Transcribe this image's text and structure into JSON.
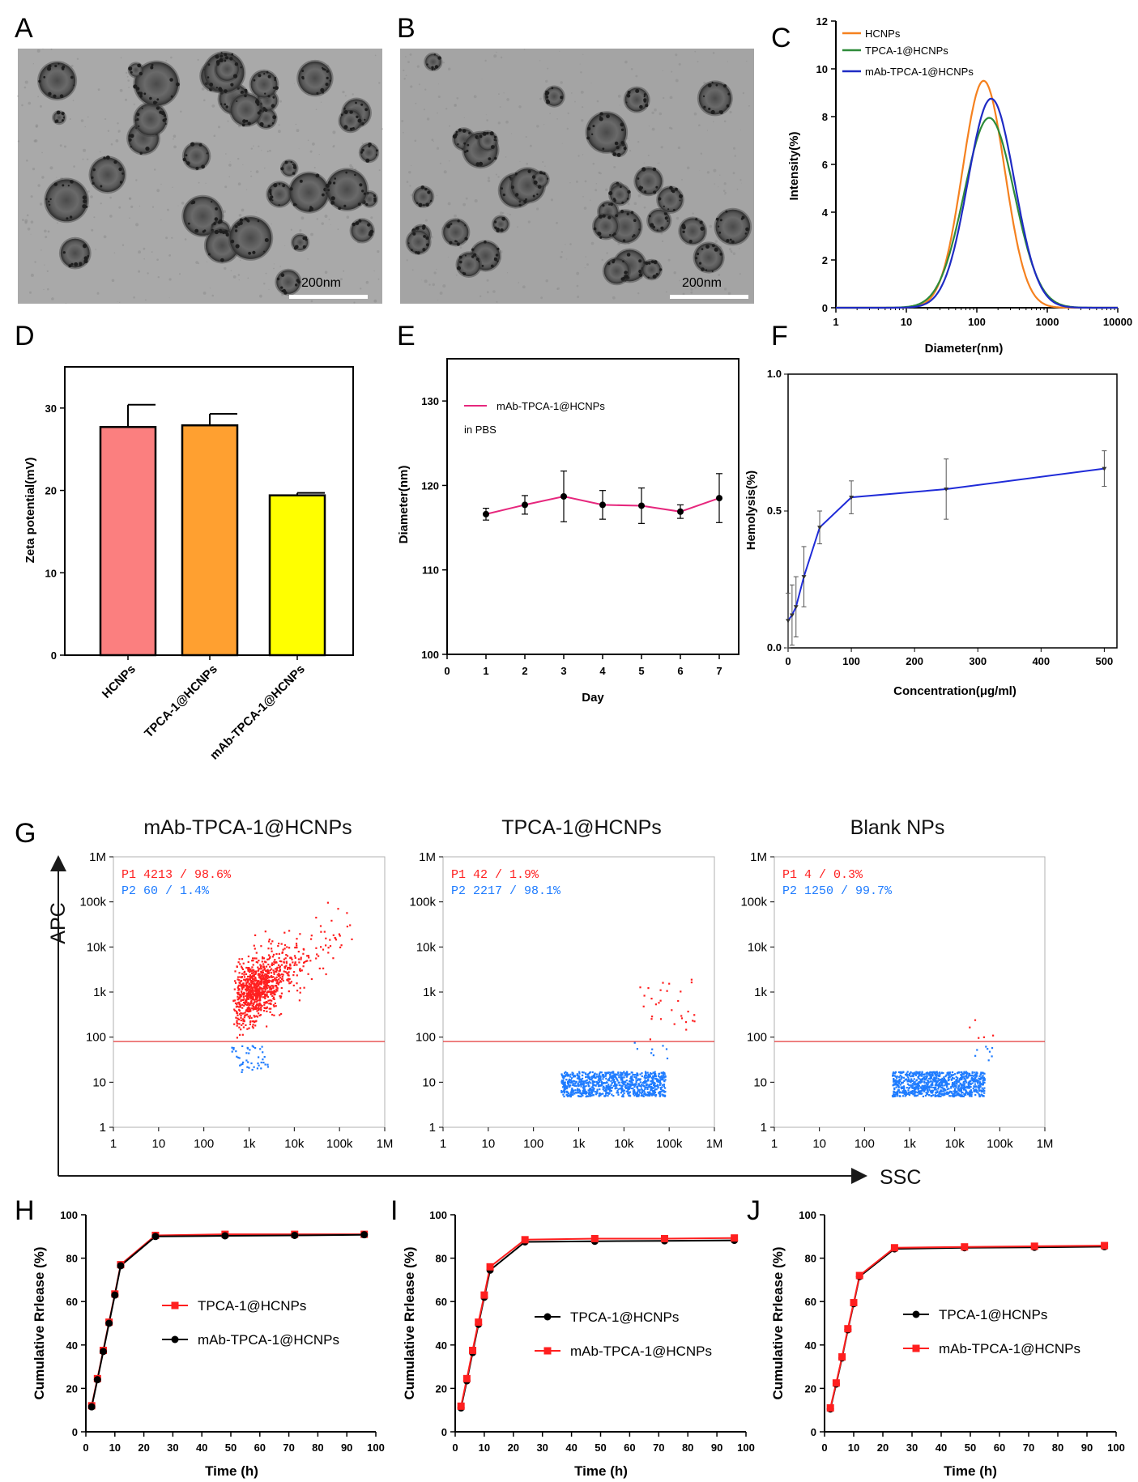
{
  "panels": {
    "A": "A",
    "B": "B",
    "C": "C",
    "D": "D",
    "E": "E",
    "F": "F",
    "G": "G",
    "H": "H",
    "I": "I",
    "J": "J"
  },
  "tem": [
    {
      "scale_label": "200nm"
    },
    {
      "scale_label": "200nm"
    }
  ],
  "colors": {
    "orange": "#f5811f",
    "green": "#2e8b3a",
    "blue": "#1f2bc4",
    "pink": "#e6277d",
    "red": "#ff1f1f",
    "popblue": "#1f7cff",
    "black": "#000000"
  },
  "chart_data": [
    {
      "id": "C",
      "type": "line",
      "xscale": "log",
      "xlabel": "Diameter(nm)",
      "ylabel": "Intensity(%)",
      "xlim": [
        1,
        10000
      ],
      "ylim": [
        0,
        12
      ],
      "xticks": [
        "1",
        "10",
        "100",
        "1000",
        "10000"
      ],
      "yticks": [
        "0",
        "2",
        "4",
        "6",
        "8",
        "10",
        "12"
      ],
      "series": [
        {
          "name": "HCNPs",
          "color": "#f5811f",
          "peak_x": 125,
          "peak_y": 9.5,
          "sigma": 0.3
        },
        {
          "name": "TPCA-1@HCNPs",
          "color": "#2e8b3a",
          "peak_x": 150,
          "peak_y": 7.95,
          "sigma": 0.355
        },
        {
          "name": "mAb-TPCA-1@HCNPs",
          "color": "#1f2bc4",
          "peak_x": 160,
          "peak_y": 8.75,
          "sigma": 0.33
        }
      ]
    },
    {
      "id": "D",
      "type": "bar",
      "ylabel": "Zeta potential(mV)",
      "ylim": [
        0,
        35
      ],
      "yticks": [
        "0",
        "10",
        "20",
        "30"
      ],
      "categories": [
        "HCNPs",
        "TPCA-1@HCNPs",
        "mAb-TPCA-1@HCNPs"
      ],
      "values": [
        27.7,
        27.9,
        19.4
      ],
      "errors": [
        2.7,
        1.4,
        0.3
      ],
      "bar_colors": [
        "#fb7f7f",
        "#ffa030",
        "#ffff00"
      ]
    },
    {
      "id": "E",
      "type": "line",
      "xlabel": "Day",
      "ylabel": "Diameter(nm)",
      "xlim": [
        0,
        7.5
      ],
      "ylim": [
        100,
        135
      ],
      "xticks": [
        "0",
        "1",
        "2",
        "3",
        "4",
        "5",
        "6",
        "7"
      ],
      "yticks": [
        "100",
        "110",
        "120",
        "130"
      ],
      "legend": "mAb-TPCA-1@HCNPs",
      "note": "in PBS",
      "x": [
        1,
        2,
        3,
        4,
        5,
        6,
        7
      ],
      "values": [
        116.6,
        117.7,
        118.7,
        117.7,
        117.6,
        116.9,
        118.5
      ],
      "errors": [
        0.7,
        1.1,
        3.0,
        1.7,
        2.1,
        0.8,
        2.9
      ]
    },
    {
      "id": "F",
      "type": "line",
      "xlabel": "Concentration(μg/ml)",
      "ylabel": "Hemolysis(%)",
      "xlim": [
        0,
        520
      ],
      "ylim": [
        0,
        1.0
      ],
      "xticks": [
        "0",
        "100",
        "200",
        "300",
        "400",
        "500"
      ],
      "yticks": [
        "0.0",
        "0.5",
        "1.0"
      ],
      "x": [
        0,
        6.25,
        12.5,
        25,
        50,
        100,
        250,
        500
      ],
      "values": [
        0.1,
        0.12,
        0.15,
        0.26,
        0.44,
        0.55,
        0.58,
        0.655
      ],
      "errors": [
        0.1,
        0.11,
        0.11,
        0.11,
        0.06,
        0.06,
        0.11,
        0.065
      ]
    },
    {
      "id": "G",
      "type": "scatter",
      "xlabel": "SSC",
      "ylabel": "APC",
      "ticks": [
        "1",
        "10",
        "100",
        "1k",
        "10k",
        "100k",
        "1M"
      ],
      "gate_y": 80,
      "plots": [
        {
          "title": "mAb-TPCA-1@HCNPs",
          "p1_label": "P1",
          "p1": "4213 / 98.6%",
          "p2_label": "P2",
          "p2": "60 / 1.4%"
        },
        {
          "title": "TPCA-1@HCNPs",
          "p1_label": "P1",
          "p1": "42 / 1.9%",
          "p2_label": "P2",
          "p2": "2217 / 98.1%"
        },
        {
          "title": "Blank NPs",
          "p1_label": "P1",
          "p1": "4 / 0.3%",
          "p2_label": "P2",
          "p2": "1250 / 99.7%"
        }
      ]
    },
    {
      "id": "H",
      "type": "line",
      "xlabel": "Time (h)",
      "ylabel": "Cumulative Rrlease (%)",
      "xlim": [
        0,
        100
      ],
      "ylim": [
        0,
        100
      ],
      "xticks": [
        "0",
        "10",
        "20",
        "30",
        "40",
        "50",
        "60",
        "70",
        "80",
        "90",
        "100"
      ],
      "yticks": [
        "0",
        "20",
        "40",
        "60",
        "80",
        "100"
      ],
      "x": [
        2,
        4,
        6,
        8,
        10,
        12,
        24,
        48,
        72,
        96
      ],
      "series": [
        {
          "name": "TPCA-1@HCNPs",
          "marker": "square",
          "color": "#ff1f1f",
          "values": [
            12,
            24.5,
            37.5,
            50.5,
            63.5,
            77,
            90.5,
            91,
            91,
            91
          ]
        },
        {
          "name": "mAb-TPCA-1@HCNPs",
          "marker": "circle",
          "color": "#000000",
          "values": [
            11.5,
            24,
            37,
            50,
            63,
            76.5,
            90,
            90.3,
            90.5,
            90.8
          ]
        }
      ]
    },
    {
      "id": "I",
      "type": "line",
      "xlabel": "Time (h)",
      "ylabel": "Cumulative Rrlease (%)",
      "xlim": [
        0,
        100
      ],
      "ylim": [
        0,
        100
      ],
      "xticks": [
        "0",
        "10",
        "20",
        "30",
        "40",
        "50",
        "60",
        "70",
        "80",
        "90",
        "100"
      ],
      "yticks": [
        "0",
        "20",
        "40",
        "60",
        "80",
        "100"
      ],
      "x": [
        2,
        4,
        6,
        8,
        10,
        12,
        24,
        48,
        72,
        96
      ],
      "series": [
        {
          "name": "TPCA-1@HCNPs",
          "marker": "circle",
          "color": "#000000",
          "values": [
            11,
            23.5,
            36.5,
            49.5,
            62,
            74.5,
            87.5,
            87.8,
            88,
            88.2
          ]
        },
        {
          "name": "mAb-TPCA-1@HCNPs",
          "marker": "square",
          "color": "#ff1f1f",
          "values": [
            11.8,
            24.5,
            37.5,
            50.5,
            63,
            76,
            88.5,
            89,
            89,
            89.3
          ]
        }
      ]
    },
    {
      "id": "J",
      "type": "line",
      "xlabel": "Time (h)",
      "ylabel": "Cumulative Rrlease (%)",
      "xlim": [
        0,
        100
      ],
      "ylim": [
        0,
        100
      ],
      "xticks": [
        "0",
        "10",
        "20",
        "30",
        "40",
        "50",
        "60",
        "70",
        "80",
        "90",
        "100"
      ],
      "yticks": [
        "0",
        "20",
        "40",
        "60",
        "80",
        "100"
      ],
      "x": [
        2,
        4,
        6,
        8,
        10,
        12,
        24,
        48,
        72,
        96
      ],
      "series": [
        {
          "name": "TPCA-1@HCNPs",
          "marker": "circle",
          "color": "#000000",
          "values": [
            10.5,
            22,
            34,
            47,
            59,
            71.5,
            84.3,
            84.8,
            85,
            85.3
          ]
        },
        {
          "name": "mAb-TPCA-1@HCNPs",
          "marker": "square",
          "color": "#ff1f1f",
          "values": [
            11,
            22.5,
            34.5,
            47.5,
            59.5,
            72,
            84.8,
            85.2,
            85.5,
            85.8
          ]
        }
      ]
    }
  ]
}
